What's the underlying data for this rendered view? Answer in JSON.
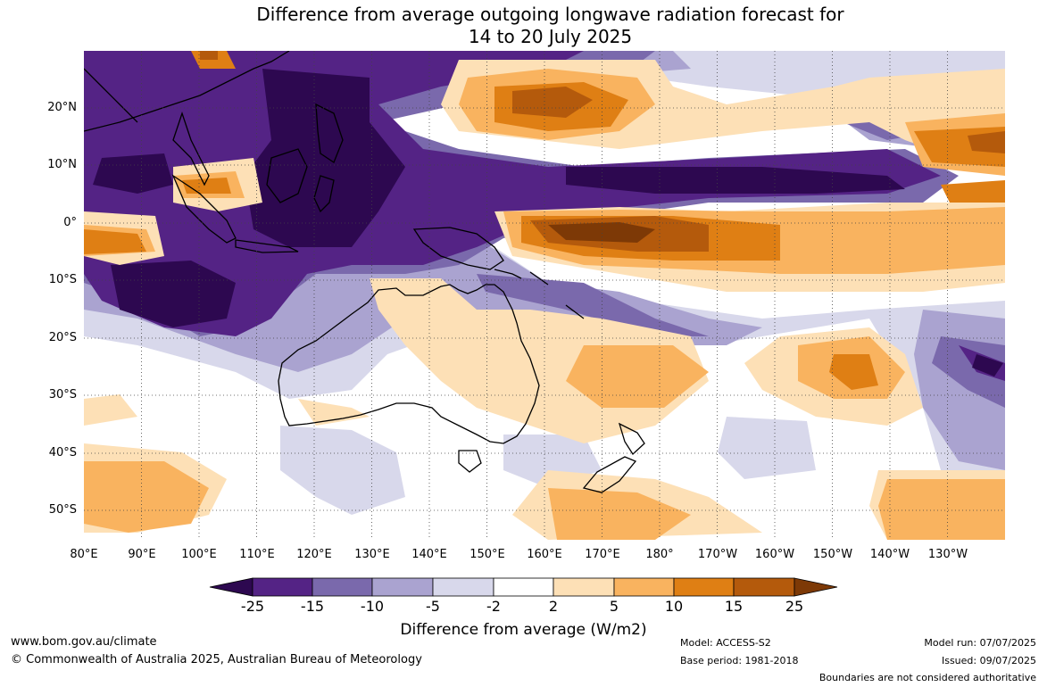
{
  "title": {
    "line1": "Difference from average outgoing longwave radiation forecast for",
    "line2": "14 to 20 July 2025"
  },
  "map": {
    "lat_labels": [
      "20°N",
      "10°N",
      "0°",
      "10°S",
      "20°S",
      "30°S",
      "40°S",
      "50°S"
    ],
    "lon_labels": [
      "80°E",
      "90°E",
      "100°E",
      "110°E",
      "120°E",
      "130°E",
      "140°E",
      "150°E",
      "160°E",
      "170°E",
      "180°",
      "170°W",
      "160°W",
      "150°W",
      "140°W",
      "130°W"
    ],
    "extent": {
      "lon_min": 80,
      "lon_max": 240,
      "lat_min": -55,
      "lat_max": 30
    }
  },
  "colorbar": {
    "tick_labels": [
      "-25",
      "-15",
      "-10",
      "-5",
      "-2",
      "2",
      "5",
      "10",
      "15",
      "25"
    ],
    "colors": [
      "#2d0850",
      "#542385",
      "#7a69ac",
      "#aaa3d0",
      "#d8d8eb",
      "#ffffff",
      "#fde0b6",
      "#f9b35f",
      "#df7f14",
      "#b45a0c",
      "#7d3906"
    ],
    "title": "Difference from average (W/m2)"
  },
  "footer": {
    "website": "www.bom.gov.au/climate",
    "copyright": "© Commonwealth of Australia 2025, Australian Bureau of Meteorology",
    "model": "Model: ACCESS-S2",
    "base_period": "Base period: 1981-2018",
    "model_run": "Model run: 07/07/2025",
    "issued": "Issued: 09/07/2025",
    "disclaimer": "Boundaries are not considered authoritative"
  }
}
